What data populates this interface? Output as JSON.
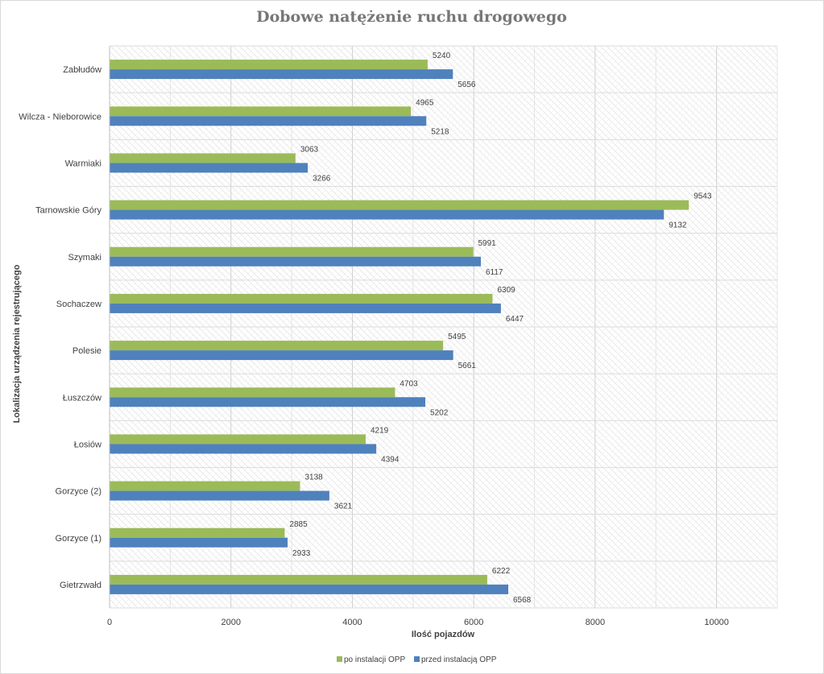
{
  "chart_data": {
    "type": "bar",
    "orientation": "horizontal",
    "title": "Dobowe natężenie ruchu drogowego",
    "xlabel": "Ilość pojazdów",
    "ylabel": "Lokalizacja urządzenia rejestrującego",
    "xlim": [
      0,
      11000
    ],
    "xticks": [
      0,
      2000,
      4000,
      6000,
      8000,
      10000
    ],
    "grid": true,
    "legend_position": "bottom",
    "categories": [
      "Zabłudów",
      "Wilcza - Nieborowice",
      "Warmiaki",
      "Tarnowskie Góry",
      "Szymaki",
      "Sochaczew",
      "Polesie",
      "Łuszczów",
      "Łosiów",
      "Gorzyce (2)",
      "Gorzyce (1)",
      "Gietrzwałd"
    ],
    "series": [
      {
        "name": "po instalacji OPP",
        "color": "#9bbb59",
        "values": [
          5240,
          4965,
          3063,
          9543,
          5991,
          6309,
          5495,
          4703,
          4219,
          3138,
          2885,
          6222
        ]
      },
      {
        "name": "przed instalacją OPP",
        "color": "#4f81bd",
        "values": [
          5656,
          5218,
          3266,
          9132,
          6117,
          6447,
          5661,
          5202,
          4394,
          3621,
          2933,
          6568
        ]
      }
    ]
  }
}
